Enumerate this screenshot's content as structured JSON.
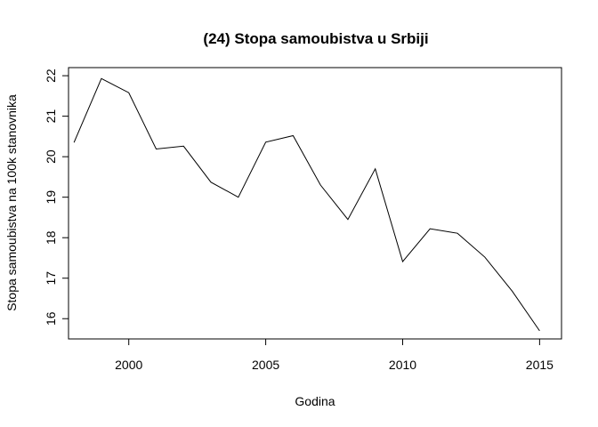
{
  "chart_data": {
    "type": "line",
    "title": "(24) Stopa samoubistva u Srbiji",
    "xlabel": "Godina",
    "ylabel": "Stopa samoubistva na 100k stanovnika",
    "xlim": [
      1997.8,
      2015.8
    ],
    "ylim": [
      15.5,
      22.2
    ],
    "x_ticks": [
      2000,
      2005,
      2010,
      2015
    ],
    "y_ticks": [
      16,
      17,
      18,
      19,
      20,
      21,
      22
    ],
    "grid": false,
    "series": [
      {
        "x": [
          1998,
          1999,
          2000,
          2001,
          2002,
          2003,
          2004,
          2005,
          2006,
          2007,
          2008,
          2009,
          2010,
          2011,
          2012,
          2013,
          2014,
          2015
        ],
        "values": [
          20.35,
          21.93,
          21.58,
          20.19,
          20.26,
          19.37,
          19.0,
          20.36,
          20.52,
          19.3,
          18.45,
          19.7,
          17.41,
          18.22,
          18.11,
          17.52,
          16.68,
          15.7
        ]
      }
    ],
    "line_color": "#000000"
  }
}
